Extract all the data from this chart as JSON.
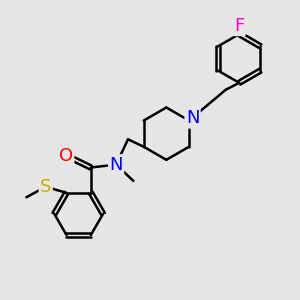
{
  "background_color": "#e6e6e6",
  "atom_colors": {
    "N": "#0000ff",
    "O": "#ff0000",
    "S": "#ccaa00",
    "F": "#ff00cc",
    "C": "#000000"
  },
  "bond_color": "#000000",
  "bond_width": 1.8,
  "font_size_atom": 12,
  "figsize": [
    3.0,
    3.0
  ],
  "dpi": 100
}
